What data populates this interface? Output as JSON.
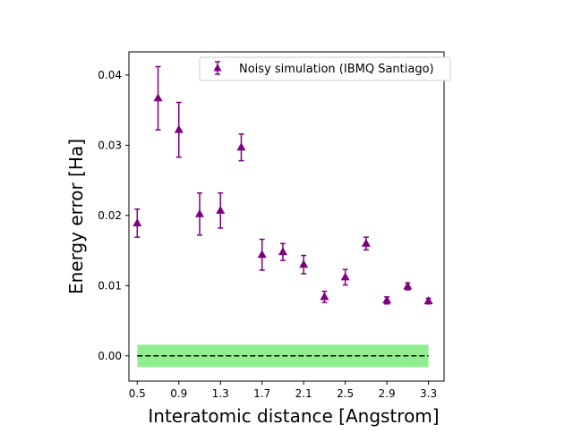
{
  "chart_data": {
    "type": "scatter",
    "title": "",
    "xlabel": "Interatomic distance [Angstrom]",
    "ylabel": "Energy error [Ha]",
    "xlim": [
      0.42,
      3.45
    ],
    "ylim": [
      -0.0036,
      0.0433
    ],
    "x_ticks": [
      0.5,
      0.9,
      1.3,
      1.7,
      2.1,
      2.5,
      2.9,
      3.3
    ],
    "x_tick_labels": [
      "0.5",
      "0.9",
      "1.3",
      "1.7",
      "2.1",
      "2.5",
      "2.9",
      "3.3"
    ],
    "y_ticks": [
      0.0,
      0.01,
      0.02,
      0.03,
      0.04
    ],
    "y_tick_labels": [
      "0.00",
      "0.01",
      "0.02",
      "0.03",
      "0.04"
    ],
    "legend_position": "top-right",
    "grid": false,
    "series": [
      {
        "name": "Noisy simulation (IBMQ Santiago)",
        "color": "#800080",
        "marker": "triangle-up",
        "x": [
          0.5,
          0.7,
          0.9,
          1.1,
          1.3,
          1.5,
          1.7,
          1.9,
          2.1,
          2.3,
          2.5,
          2.7,
          2.9,
          3.1,
          3.3
        ],
        "y": [
          0.0189,
          0.0367,
          0.0322,
          0.0202,
          0.0207,
          0.0297,
          0.0144,
          0.0148,
          0.013,
          0.0084,
          0.0112,
          0.016,
          0.0079,
          0.0099,
          0.0078
        ],
        "err": [
          0.002,
          0.0045,
          0.0039,
          0.003,
          0.0025,
          0.0019,
          0.0022,
          0.0012,
          0.0013,
          0.0008,
          0.0011,
          0.0009,
          0.0005,
          0.0005,
          0.0004
        ]
      }
    ],
    "reference": {
      "y": 0.0,
      "band_halfwidth": 0.0016,
      "x_range": [
        0.5,
        3.3
      ],
      "line_color": "#000000",
      "band_color": "#90ee90"
    }
  }
}
